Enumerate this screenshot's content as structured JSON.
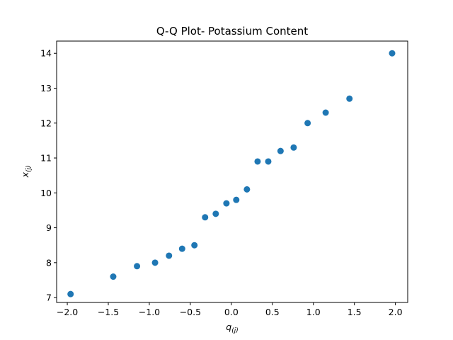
{
  "chart_data": {
    "type": "scatter",
    "title": "Q-Q Plot- Potassium Content",
    "xlabel": {
      "base": "q",
      "subscript": "(j)"
    },
    "ylabel": {
      "base": "x",
      "subscript": "(j)"
    },
    "xlim": [
      -2.13,
      2.15
    ],
    "ylim": [
      6.86,
      14.35
    ],
    "xticks": [
      -2.0,
      -1.5,
      -1.0,
      -0.5,
      0.0,
      0.5,
      1.0,
      1.5,
      2.0
    ],
    "xtick_labels": [
      "−2.0",
      "−1.5",
      "−1.0",
      "−0.5",
      "0.0",
      "0.5",
      "1.0",
      "1.5",
      "2.0"
    ],
    "yticks": [
      7,
      8,
      9,
      10,
      11,
      12,
      13,
      14
    ],
    "ytick_labels": [
      "7",
      "8",
      "9",
      "10",
      "11",
      "12",
      "13",
      "14"
    ],
    "grid": false,
    "marker_color": "#1f77b4",
    "points": [
      {
        "x": -1.96,
        "y": 7.1
      },
      {
        "x": -1.44,
        "y": 7.6
      },
      {
        "x": -1.15,
        "y": 7.9
      },
      {
        "x": -0.93,
        "y": 8.0
      },
      {
        "x": -0.76,
        "y": 8.2
      },
      {
        "x": -0.6,
        "y": 8.4
      },
      {
        "x": -0.45,
        "y": 8.5
      },
      {
        "x": -0.32,
        "y": 9.3
      },
      {
        "x": -0.19,
        "y": 9.4
      },
      {
        "x": -0.06,
        "y": 9.7
      },
      {
        "x": 0.06,
        "y": 9.8
      },
      {
        "x": 0.19,
        "y": 10.1
      },
      {
        "x": 0.32,
        "y": 10.9
      },
      {
        "x": 0.45,
        "y": 10.9
      },
      {
        "x": 0.6,
        "y": 11.2
      },
      {
        "x": 0.76,
        "y": 11.3
      },
      {
        "x": 0.93,
        "y": 12.0
      },
      {
        "x": 1.15,
        "y": 12.3
      },
      {
        "x": 1.44,
        "y": 12.7
      },
      {
        "x": 1.96,
        "y": 14.0
      }
    ]
  }
}
